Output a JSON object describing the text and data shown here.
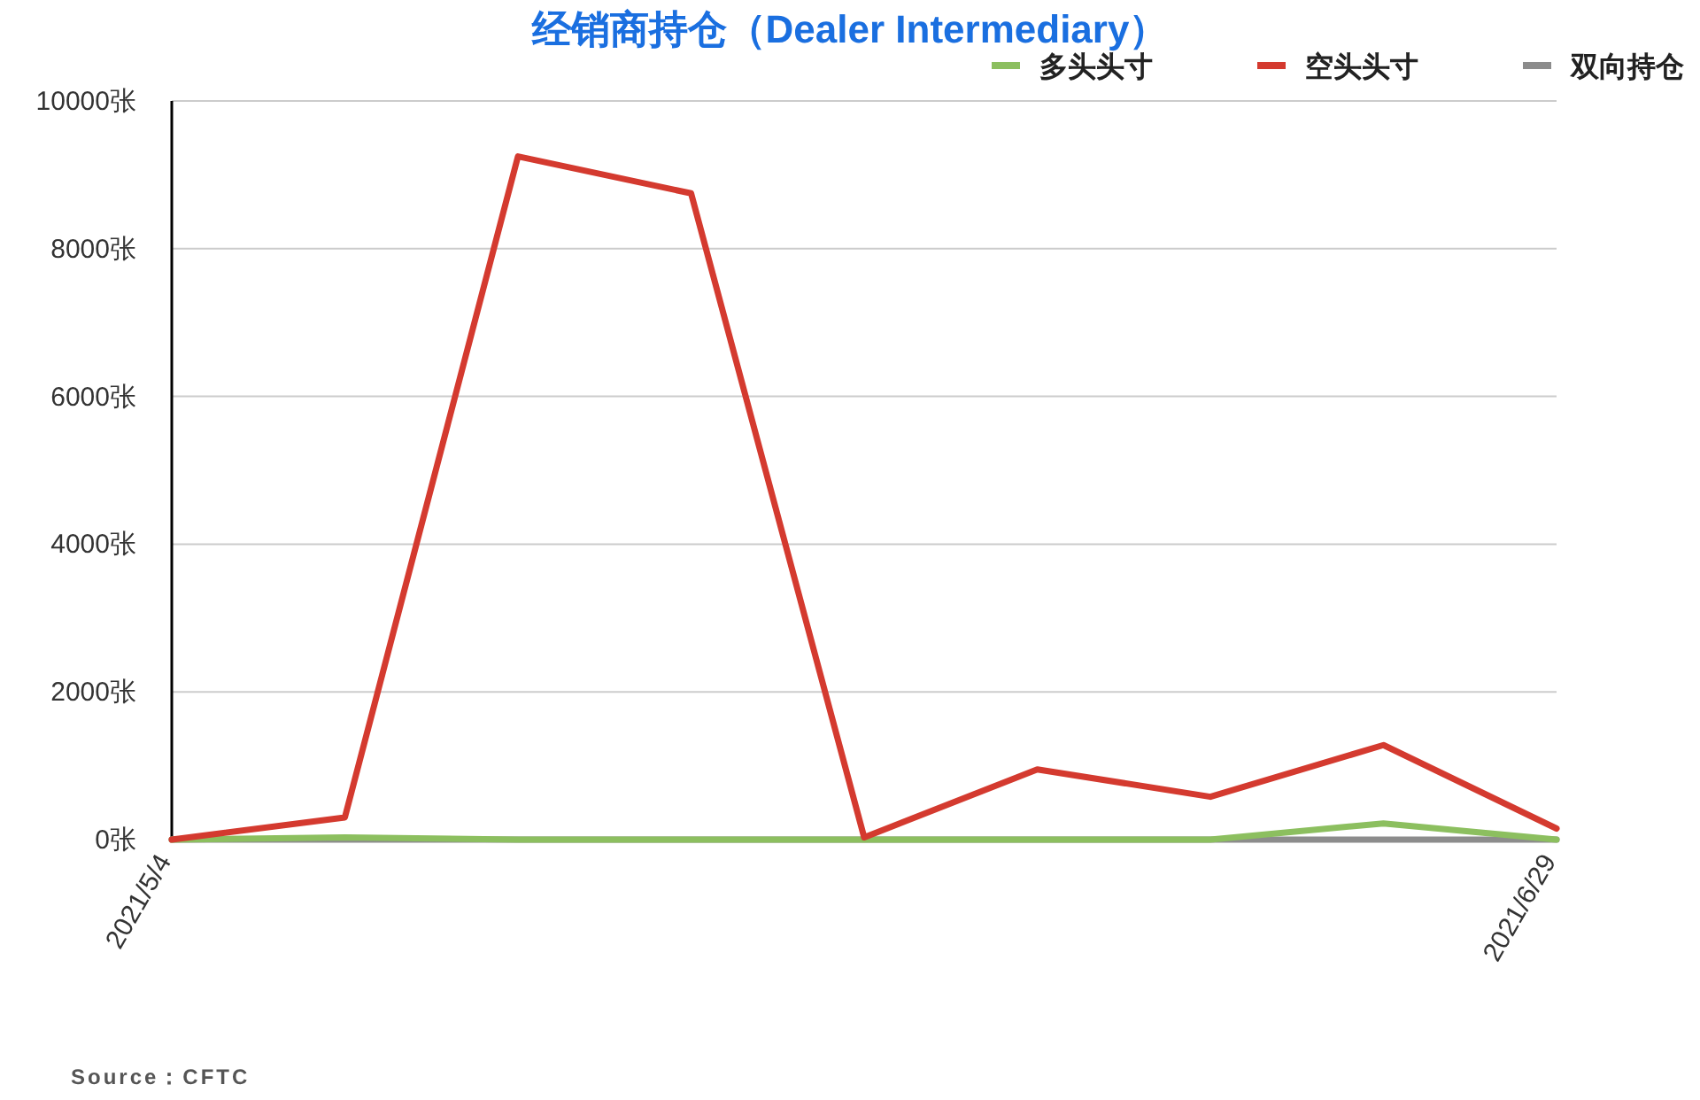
{
  "chart_data": {
    "type": "line",
    "title": "经销商持仓（Dealer Intermediary）",
    "categories": [
      "2021/5/4",
      null,
      null,
      null,
      null,
      null,
      null,
      null,
      "2021/6/29"
    ],
    "series": [
      {
        "name": "多头头寸",
        "color": "#8cbf5f",
        "values": [
          0,
          30,
          0,
          0,
          0,
          0,
          0,
          220,
          0
        ]
      },
      {
        "name": "空头头寸",
        "color": "#d43a2f",
        "values": [
          0,
          300,
          9250,
          8750,
          30,
          950,
          580,
          1280,
          150
        ]
      },
      {
        "name": "双向持仓",
        "color": "#8c8c8c",
        "values": [
          0,
          0,
          0,
          0,
          0,
          0,
          0,
          0,
          0
        ]
      }
    ],
    "ylim": [
      0,
      10000
    ],
    "yticks": [
      {
        "value": 0,
        "label": "0张"
      },
      {
        "value": 2000,
        "label": "2000张"
      },
      {
        "value": 4000,
        "label": "4000张"
      },
      {
        "value": 6000,
        "label": "6000张"
      },
      {
        "value": 8000,
        "label": "8000张"
      },
      {
        "value": 10000,
        "label": "10000张"
      }
    ],
    "grid": "y",
    "legend": "top right",
    "marker": "none",
    "line_style": "solid",
    "annotations": [
      "Source：CFTC"
    ]
  }
}
